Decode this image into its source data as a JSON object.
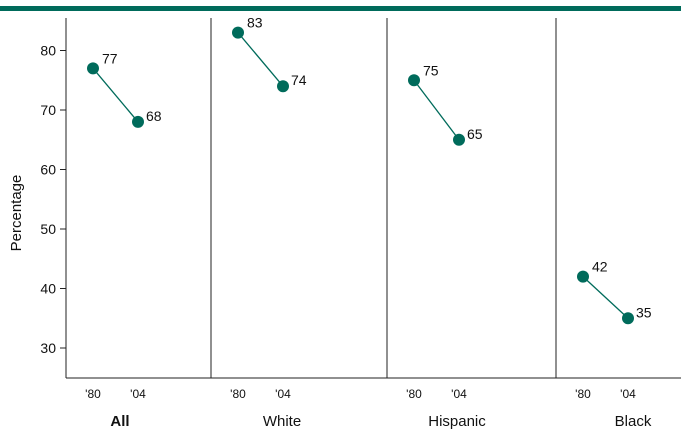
{
  "chart_data": {
    "type": "line",
    "ylabel": "Percentage",
    "ylim": [
      25,
      86
    ],
    "yticks": [
      30,
      40,
      50,
      60,
      70,
      80
    ],
    "x": [
      "'80",
      "'04"
    ],
    "accent_color": "#006B5B",
    "panels": [
      {
        "name": "All",
        "bold": true,
        "values": [
          77,
          68
        ]
      },
      {
        "name": "White",
        "bold": false,
        "values": [
          83,
          74
        ]
      },
      {
        "name": "Hispanic",
        "bold": false,
        "values": [
          75,
          65
        ]
      },
      {
        "name": "Black",
        "bold": false,
        "values": [
          42,
          35
        ]
      }
    ]
  }
}
